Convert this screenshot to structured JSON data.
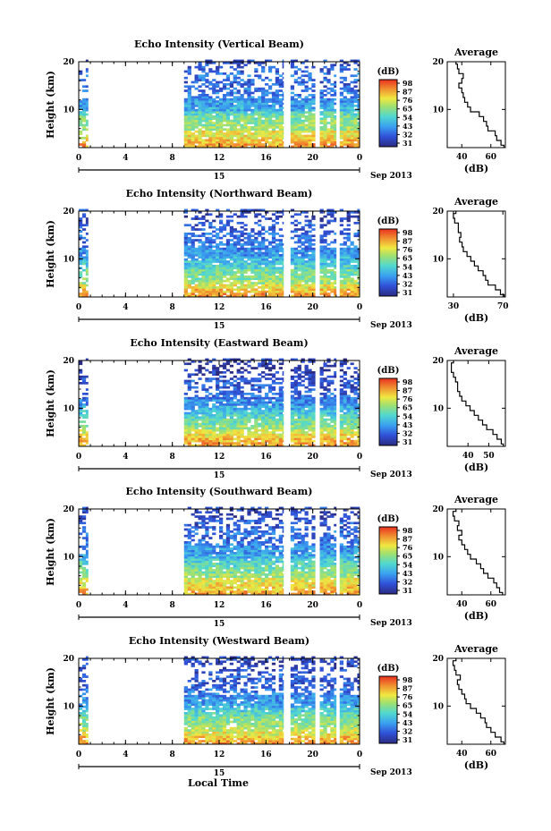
{
  "figure": {
    "xlabel": "Local Time",
    "date_label": "Sep 2013",
    "date_tick": "15",
    "colorbar_unit": "(dB)",
    "average_title": "Average",
    "average_xlabel": "(dB)"
  },
  "chart_data": [
    {
      "type": "heatmap",
      "title": "Echo Intensity (Vertical Beam)",
      "ylabel": "Height (km)",
      "xlim": [
        0,
        24
      ],
      "ylim": [
        2,
        20
      ],
      "xticks": [
        "0",
        "4",
        "8",
        "12",
        "16",
        "20",
        "0"
      ],
      "yticks": [
        "10",
        "20"
      ],
      "colorbar_ticks": [
        "31",
        "32",
        "43",
        "54",
        "65",
        "76",
        "87",
        "98"
      ],
      "colorbar_range": [
        21,
        98
      ],
      "data_periods": [
        [
          0,
          0.8
        ],
        [
          9,
          17.5
        ],
        [
          18.1,
          20.2
        ],
        [
          20.6,
          22.0
        ],
        [
          22.3,
          24
        ]
      ],
      "average": {
        "xlim": [
          30,
          70
        ],
        "xticks": [
          "40",
          "60"
        ],
        "profile": [
          [
            2,
            69
          ],
          [
            3,
            67
          ],
          [
            4,
            64
          ],
          [
            5,
            63
          ],
          [
            6,
            58
          ],
          [
            7,
            57
          ],
          [
            8,
            55
          ],
          [
            9,
            52
          ],
          [
            10,
            46
          ],
          [
            11,
            44
          ],
          [
            12,
            42
          ],
          [
            13,
            41
          ],
          [
            14,
            40
          ],
          [
            15,
            38
          ],
          [
            16,
            40
          ],
          [
            17,
            41
          ],
          [
            18,
            38
          ],
          [
            19,
            37
          ],
          [
            20,
            36
          ]
        ]
      }
    },
    {
      "type": "heatmap",
      "title": "Echo Intensity (Northward Beam)",
      "ylabel": "Height (km)",
      "xlim": [
        0,
        24
      ],
      "ylim": [
        2,
        20
      ],
      "xticks": [
        "0",
        "4",
        "8",
        "12",
        "16",
        "20",
        "0"
      ],
      "yticks": [
        "10",
        "20"
      ],
      "colorbar_ticks": [
        "31",
        "32",
        "43",
        "54",
        "65",
        "76",
        "87",
        "98"
      ],
      "colorbar_range": [
        21,
        98
      ],
      "data_periods": [
        [
          0,
          0.8
        ],
        [
          9,
          17.5
        ],
        [
          18.1,
          20.2
        ],
        [
          20.6,
          22.0
        ],
        [
          22.3,
          24
        ]
      ],
      "average": {
        "xlim": [
          25,
          72
        ],
        "xticks": [
          "30",
          "70"
        ],
        "profile": [
          [
            2,
            71
          ],
          [
            3,
            68
          ],
          [
            4,
            64
          ],
          [
            5,
            58
          ],
          [
            6,
            56
          ],
          [
            7,
            54
          ],
          [
            8,
            50
          ],
          [
            9,
            47
          ],
          [
            10,
            44
          ],
          [
            11,
            41
          ],
          [
            12,
            38
          ],
          [
            13,
            37
          ],
          [
            14,
            35
          ],
          [
            15,
            36
          ],
          [
            16,
            34
          ],
          [
            17,
            34
          ],
          [
            18,
            31
          ],
          [
            19,
            30
          ],
          [
            20,
            32
          ]
        ]
      }
    },
    {
      "type": "heatmap",
      "title": "Echo Intensity (Eastward Beam)",
      "ylabel": "Height (km)",
      "xlim": [
        0,
        24
      ],
      "ylim": [
        2,
        20
      ],
      "xticks": [
        "0",
        "4",
        "8",
        "12",
        "16",
        "20",
        "0"
      ],
      "yticks": [
        "10",
        "20"
      ],
      "colorbar_ticks": [
        "31",
        "32",
        "43",
        "54",
        "65",
        "76",
        "87",
        "98"
      ],
      "colorbar_range": [
        21,
        98
      ],
      "data_periods": [
        [
          0,
          0.8
        ],
        [
          9,
          17.5
        ],
        [
          18.1,
          20.2
        ],
        [
          20.6,
          22.0
        ],
        [
          22.3,
          24
        ]
      ],
      "average": {
        "xlim": [
          30,
          58
        ],
        "xticks": [
          "40",
          "50"
        ],
        "profile": [
          [
            2,
            57
          ],
          [
            3,
            56
          ],
          [
            4,
            54
          ],
          [
            5,
            52
          ],
          [
            6,
            49
          ],
          [
            7,
            47
          ],
          [
            8,
            45
          ],
          [
            9,
            43
          ],
          [
            10,
            41
          ],
          [
            11,
            39
          ],
          [
            12,
            37
          ],
          [
            13,
            36
          ],
          [
            14,
            35
          ],
          [
            15,
            35
          ],
          [
            16,
            34
          ],
          [
            17,
            33
          ],
          [
            18,
            32
          ],
          [
            19,
            32
          ],
          [
            20,
            33
          ]
        ]
      }
    },
    {
      "type": "heatmap",
      "title": "Echo Intensity (Southward Beam)",
      "ylabel": "Height (km)",
      "xlim": [
        0,
        24
      ],
      "ylim": [
        2,
        20
      ],
      "xticks": [
        "0",
        "4",
        "8",
        "12",
        "16",
        "20",
        "0"
      ],
      "yticks": [
        "10",
        "20"
      ],
      "colorbar_ticks": [
        "31",
        "32",
        "43",
        "54",
        "65",
        "76",
        "87",
        "98"
      ],
      "colorbar_range": [
        21,
        98
      ],
      "data_periods": [
        [
          0,
          0.8
        ],
        [
          9,
          17.5
        ],
        [
          18.1,
          20.2
        ],
        [
          20.6,
          22.0
        ],
        [
          22.3,
          24
        ]
      ],
      "average": {
        "xlim": [
          30,
          70
        ],
        "xticks": [
          "40",
          "60"
        ],
        "profile": [
          [
            2,
            68
          ],
          [
            3,
            66
          ],
          [
            4,
            64
          ],
          [
            5,
            62
          ],
          [
            6,
            58
          ],
          [
            7,
            55
          ],
          [
            8,
            53
          ],
          [
            9,
            50
          ],
          [
            10,
            46
          ],
          [
            11,
            44
          ],
          [
            12,
            42
          ],
          [
            13,
            40
          ],
          [
            14,
            38
          ],
          [
            15,
            40
          ],
          [
            16,
            37
          ],
          [
            17,
            38
          ],
          [
            18,
            35
          ],
          [
            19,
            34
          ],
          [
            20,
            36
          ]
        ]
      }
    },
    {
      "type": "heatmap",
      "title": "Echo Intensity (Westward Beam)",
      "ylabel": "Height (km)",
      "xlim": [
        0,
        24
      ],
      "ylim": [
        2,
        20
      ],
      "xticks": [
        "0",
        "4",
        "8",
        "12",
        "16",
        "20",
        "0"
      ],
      "yticks": [
        "10",
        "20"
      ],
      "colorbar_ticks": [
        "31",
        "32",
        "43",
        "54",
        "65",
        "76",
        "87",
        "98"
      ],
      "colorbar_range": [
        21,
        98
      ],
      "data_periods": [
        [
          0,
          0.8
        ],
        [
          9,
          17.5
        ],
        [
          18.1,
          20.2
        ],
        [
          20.6,
          22.0
        ],
        [
          22.3,
          24
        ]
      ],
      "average": {
        "xlim": [
          30,
          70
        ],
        "xticks": [
          "40",
          "60"
        ],
        "profile": [
          [
            2,
            69
          ],
          [
            3,
            67
          ],
          [
            4,
            63
          ],
          [
            5,
            60
          ],
          [
            6,
            57
          ],
          [
            7,
            56
          ],
          [
            8,
            53
          ],
          [
            9,
            50
          ],
          [
            10,
            46
          ],
          [
            11,
            43
          ],
          [
            12,
            42
          ],
          [
            13,
            40
          ],
          [
            14,
            38
          ],
          [
            15,
            37
          ],
          [
            16,
            39
          ],
          [
            17,
            36
          ],
          [
            18,
            35
          ],
          [
            19,
            34
          ],
          [
            20,
            36
          ]
        ]
      }
    }
  ]
}
